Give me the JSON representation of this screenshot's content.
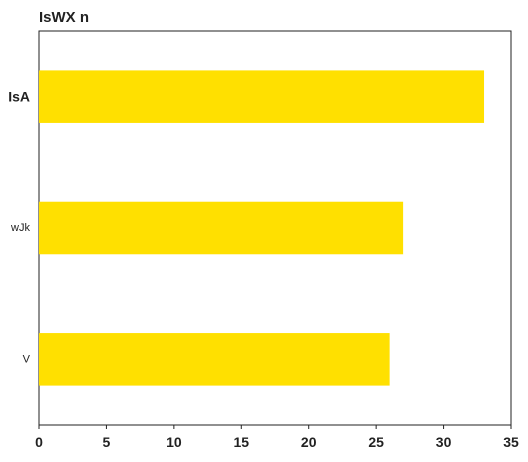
{
  "chart_data": {
    "type": "bar",
    "orientation": "horizontal",
    "title": "IsWX n",
    "xlabel": "",
    "ylabel": "",
    "categories": [
      "IsA",
      "wJk",
      "V"
    ],
    "values": [
      33,
      27,
      26
    ],
    "xlim": [
      0,
      35
    ],
    "xticks": [
      0,
      5,
      10,
      15,
      20,
      25,
      30,
      35
    ],
    "bar_color": "#FFE000",
    "emphasized_category": "IsA",
    "grid": false,
    "legend": "none"
  }
}
